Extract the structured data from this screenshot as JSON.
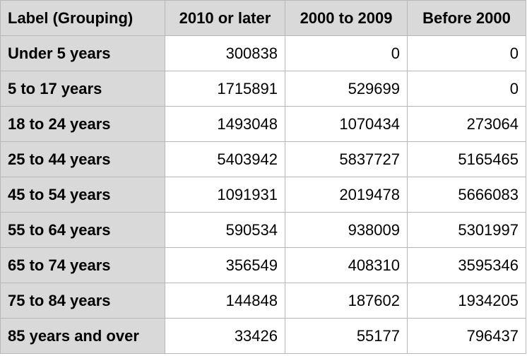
{
  "table": {
    "headers": [
      "Label (Grouping)",
      "2010 or later",
      "2000 to 2009",
      "Before 2000"
    ],
    "rows": [
      {
        "label": "Under 5 years",
        "values": [
          "300838",
          "0",
          "0"
        ]
      },
      {
        "label": "5 to 17 years",
        "values": [
          "1715891",
          "529699",
          "0"
        ]
      },
      {
        "label": "18 to 24 years",
        "values": [
          "1493048",
          "1070434",
          "273064"
        ]
      },
      {
        "label": "25 to 44 years",
        "values": [
          "5403942",
          "5837727",
          "5165465"
        ]
      },
      {
        "label": "45 to 54 years",
        "values": [
          "1091931",
          "2019478",
          "5666083"
        ]
      },
      {
        "label": "55 to 64 years",
        "values": [
          "590534",
          "938009",
          "5301997"
        ]
      },
      {
        "label": "65 to 74 years",
        "values": [
          "356549",
          "408310",
          "3595346"
        ]
      },
      {
        "label": "75 to 84 years",
        "values": [
          "144848",
          "187602",
          "1934205"
        ]
      },
      {
        "label": "85 years and over",
        "values": [
          "33426",
          "55177",
          "796437"
        ]
      }
    ]
  }
}
